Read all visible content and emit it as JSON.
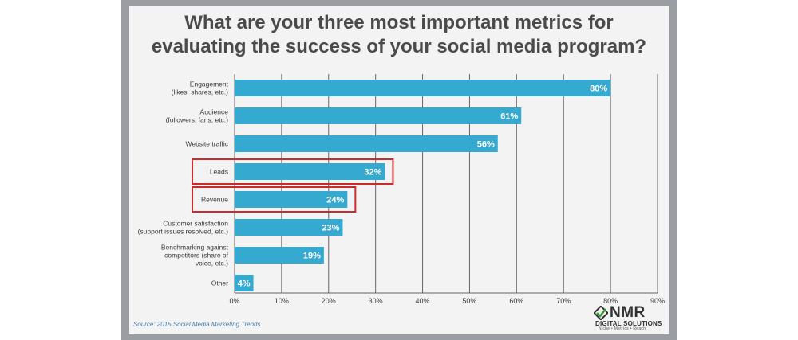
{
  "chart_data": {
    "type": "bar",
    "orientation": "horizontal",
    "title_lines": [
      "What are your three most important metrics for",
      "evaluating the success of your social media program?"
    ],
    "categories": [
      [
        "Engagement",
        "(likes, shares, etc.)"
      ],
      [
        "Audience",
        "(followers, fans, etc.)"
      ],
      [
        "Website traffic"
      ],
      [
        "Leads"
      ],
      [
        "Revenue"
      ],
      [
        "Customer satisfaction",
        "(support issues resolved, etc.)"
      ],
      [
        "Benchmarking against",
        "competitors (share of",
        "voice, etc.)"
      ],
      [
        "Other"
      ]
    ],
    "values": [
      80,
      61,
      56,
      32,
      24,
      23,
      19,
      4
    ],
    "value_labels": [
      "80%",
      "61%",
      "56%",
      "32%",
      "24%",
      "23%",
      "19%",
      "4%"
    ],
    "highlighted": [
      3,
      4
    ],
    "xlim": [
      0,
      90
    ],
    "xticks": [
      0,
      10,
      20,
      30,
      40,
      50,
      60,
      70,
      80,
      90
    ],
    "xtick_labels": [
      "0%",
      "10%",
      "20%",
      "30%",
      "40%",
      "50%",
      "60%",
      "70%",
      "80%",
      "90%"
    ],
    "grid": "vertical",
    "colors": {
      "bar": "#35a9cf",
      "highlight": "#cc2b2b",
      "grid": "#666666",
      "text": "#3a3a3a"
    }
  },
  "source": "Source: 2015 Social Media Marketing Trends",
  "logo": {
    "brand": "NMR",
    "subtitle": "DIGITAL SOLUTIONS",
    "tagline": "Niche • Metrics • Reach",
    "icon": "checkmark-diamond-icon"
  }
}
